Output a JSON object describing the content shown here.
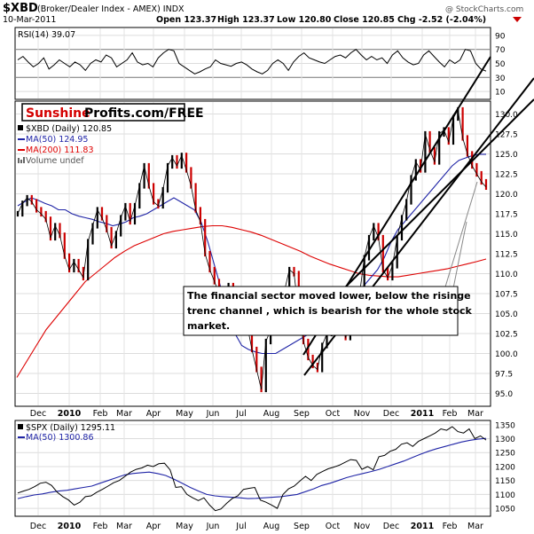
{
  "header": {
    "symbol": "$XBD",
    "name": "(Broker/Dealer Index - AMEX) INDX",
    "date": "10-Mar-2011",
    "open": "Open 123.37",
    "high": "High 123.37",
    "low": "Low 120.80",
    "close": "Close 120.85",
    "chg": "Chg -2.52 (-2.04%)",
    "watermark": "@ StockCharts.com"
  },
  "rsi": {
    "label": "RSI(14) 39.07",
    "ticks": [
      "90",
      "70",
      "50",
      "30",
      "10"
    ]
  },
  "brand": {
    "part1": "Sunshine",
    "part2": "Profits.com/FREE"
  },
  "legend": {
    "main": "$XBD (Daily) 120.85",
    "ma50": "MA(50) 124.95",
    "ma200": "MA(200) 111.83",
    "volume": "Volume undef"
  },
  "annotation": {
    "lines": [
      "The financial sector moved lower, below the risinge",
      "trenc channel , which is bearish for the whole stock",
      "market."
    ]
  },
  "spx_legend": {
    "main": "$SPX (Daily) 1295.11",
    "ma50": "MA(50) 1300.86"
  },
  "months": [
    "Dec",
    "2010",
    "Feb",
    "Mar",
    "Apr",
    "May",
    "Jun",
    "Jul",
    "Aug",
    "Sep",
    "Oct",
    "Nov",
    "Dec",
    "2011",
    "Feb",
    "Mar"
  ],
  "colors": {
    "price": "#000000",
    "price_down": "#cc0000",
    "ma50": "#1f24a6",
    "ma200": "#dd0000",
    "grid": "#d8d8d8",
    "brand_red": "#d40000"
  },
  "chart_data": [
    {
      "type": "line",
      "title": "RSI(14)",
      "ylim": [
        0,
        100
      ],
      "yticks": [
        90,
        70,
        50,
        30,
        10
      ],
      "series": [
        {
          "name": "RSI(14)",
          "values": [
            55,
            60,
            52,
            45,
            50,
            58,
            42,
            48,
            55,
            50,
            45,
            52,
            48,
            40,
            50,
            55,
            52,
            62,
            58,
            45,
            50,
            55,
            65,
            52,
            48,
            50,
            45,
            58,
            65,
            70,
            68,
            50,
            45,
            40,
            35,
            38,
            42,
            45,
            55,
            50,
            48,
            46,
            50,
            52,
            48,
            42,
            38,
            35,
            40,
            50,
            55,
            50,
            40,
            52,
            60,
            65,
            58,
            55,
            52,
            50,
            55,
            60,
            62,
            58,
            65,
            70,
            62,
            55,
            60,
            55,
            58,
            50,
            62,
            68,
            58,
            52,
            48,
            50,
            62,
            68,
            60,
            52,
            45,
            55,
            50,
            55,
            70,
            68,
            50,
            42,
            39
          ]
        }
      ]
    },
    {
      "type": "line",
      "title": "$XBD (Daily)",
      "ylim": [
        93.5,
        131.5
      ],
      "yticks": [
        95,
        97.5,
        100,
        102.5,
        105,
        107.5,
        110,
        112.5,
        115,
        117.5,
        120,
        122.5,
        125,
        127.5,
        130
      ],
      "series": [
        {
          "name": "$XBD (Daily)",
          "values": [
            117.5,
            118.8,
            119.5,
            119,
            118,
            117.5,
            116.8,
            114.5,
            116,
            114.8,
            112.2,
            110.5,
            111.5,
            110.5,
            109.5,
            114,
            116,
            118,
            117,
            115.5,
            113.5,
            115,
            117,
            118.5,
            116.5,
            118.5,
            121,
            123.5,
            121,
            119,
            118.5,
            120.5,
            123.5,
            124.5,
            123.5,
            124.8,
            123,
            121,
            118,
            116.5,
            112.5,
            110.5,
            109,
            107.5,
            105.5,
            108.5,
            106.5,
            106.5,
            105.5,
            103.5,
            100.5,
            98,
            95.5,
            101.5,
            103,
            104.5,
            105.5,
            108,
            110.5,
            110,
            105,
            101.5,
            99.5,
            98.5,
            98,
            101,
            102.5,
            104.5,
            103.8,
            104.5,
            102,
            103.8,
            106.5,
            107.5,
            112,
            114.5,
            116,
            114.5,
            110.5,
            109.5,
            111,
            114.5,
            117,
            119,
            122,
            124,
            123,
            127.5,
            125.5,
            124,
            127.5,
            128,
            126.5,
            129.5,
            130.5,
            127,
            125,
            123.5,
            122.5,
            121.5,
            120.85
          ]
        },
        {
          "name": "MA(50)",
          "values": [
            118.5,
            119,
            119.5,
            119.2,
            118.8,
            118.5,
            118,
            118,
            117.5,
            117.2,
            117,
            116.8,
            116.5,
            116.3,
            116,
            116.2,
            116.5,
            117,
            117.2,
            117.5,
            118,
            118.5,
            119,
            119.5,
            119,
            118.5,
            118,
            116.5,
            114,
            111,
            108,
            105,
            102.5,
            101,
            100.5,
            100.2,
            100,
            100,
            100,
            100.5,
            101,
            101.5,
            102,
            102.5,
            103,
            103.5,
            104,
            104.5,
            105,
            106,
            107.5,
            108.5,
            109.5,
            110.5,
            112,
            114,
            115.5,
            116.5,
            117.5,
            118.5,
            119.5,
            120.5,
            121.5,
            122.5,
            123.5,
            124.2,
            124.5,
            124.8,
            124.95,
            124.95
          ]
        },
        {
          "name": "MA(200)",
          "values": [
            97,
            99,
            101,
            103,
            104.5,
            106,
            107.5,
            109,
            110,
            111,
            112,
            112.8,
            113.5,
            114,
            114.5,
            115,
            115.3,
            115.5,
            115.7,
            115.9,
            116,
            116,
            115.8,
            115.5,
            115.2,
            114.8,
            114.3,
            113.8,
            113.3,
            112.8,
            112.2,
            111.7,
            111.2,
            110.8,
            110.4,
            110,
            109.8,
            109.7,
            109.6,
            109.6,
            109.8,
            110,
            110.2,
            110.4,
            110.6,
            110.9,
            111.2,
            111.5,
            111.83
          ]
        }
      ]
    },
    {
      "type": "line",
      "title": "$SPX (Daily)",
      "ylim": [
        1025,
        1362
      ],
      "yticks": [
        1050,
        1100,
        1150,
        1200,
        1250,
        1300,
        1350
      ],
      "series": [
        {
          "name": "$SPX (Daily)",
          "values": [
            1105,
            1112,
            1118,
            1128,
            1140,
            1144,
            1132,
            1108,
            1092,
            1080,
            1062,
            1072,
            1092,
            1095,
            1108,
            1118,
            1130,
            1142,
            1150,
            1165,
            1180,
            1190,
            1195,
            1205,
            1200,
            1210,
            1212,
            1188,
            1125,
            1128,
            1100,
            1088,
            1078,
            1088,
            1062,
            1042,
            1048,
            1068,
            1085,
            1095,
            1118,
            1122,
            1125,
            1080,
            1072,
            1062,
            1050,
            1100,
            1120,
            1130,
            1148,
            1165,
            1150,
            1172,
            1182,
            1192,
            1198,
            1205,
            1215,
            1225,
            1222,
            1190,
            1200,
            1188,
            1235,
            1240,
            1255,
            1262,
            1280,
            1285,
            1272,
            1290,
            1300,
            1310,
            1320,
            1335,
            1330,
            1343,
            1325,
            1320,
            1335,
            1300,
            1310,
            1295
          ]
        },
        {
          "name": "MA(50)",
          "values": [
            1085,
            1092,
            1098,
            1102,
            1108,
            1112,
            1115,
            1120,
            1125,
            1130,
            1140,
            1150,
            1160,
            1170,
            1175,
            1178,
            1180,
            1175,
            1168,
            1155,
            1140,
            1125,
            1112,
            1100,
            1095,
            1092,
            1090,
            1088,
            1085,
            1086,
            1088,
            1090,
            1092,
            1096,
            1100,
            1110,
            1120,
            1132,
            1140,
            1150,
            1160,
            1168,
            1175,
            1182,
            1190,
            1200,
            1210,
            1220,
            1232,
            1244,
            1255,
            1264,
            1272,
            1280,
            1288,
            1294,
            1298,
            1300.86
          ]
        }
      ]
    }
  ]
}
